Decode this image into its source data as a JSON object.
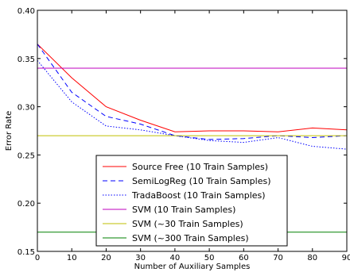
{
  "chart_data": {
    "type": "line",
    "title": "",
    "xlabel": "Number of Auxiliary Samples",
    "ylabel": "Error Rate",
    "xlim": [
      0,
      90
    ],
    "ylim": [
      0.15,
      0.4
    ],
    "x_ticks": [
      0,
      10,
      20,
      30,
      40,
      50,
      60,
      70,
      80,
      90
    ],
    "y_ticks": [
      "0.15",
      "0.20",
      "0.25",
      "0.30",
      "0.35",
      "0.40"
    ],
    "grid": false,
    "legend_position": "bottom-center",
    "x": [
      0,
      10,
      20,
      30,
      40,
      50,
      60,
      70,
      80,
      90
    ],
    "series": [
      {
        "name": "Source Free (10 Train Samples)",
        "color": "#ff0000",
        "dash": "solid",
        "values": [
          0.365,
          0.33,
          0.3,
          0.286,
          0.274,
          0.275,
          0.275,
          0.274,
          0.278,
          0.276
        ]
      },
      {
        "name": "SemiLogReg (10 Train Samples)",
        "color": "#0000ff",
        "dash": "dashed",
        "values": [
          0.365,
          0.315,
          0.29,
          0.282,
          0.27,
          0.266,
          0.267,
          0.27,
          0.268,
          0.27
        ]
      },
      {
        "name": "TradaBoost (10 Train Samples)",
        "color": "#0000ff",
        "dash": "dotted",
        "values": [
          0.348,
          0.305,
          0.28,
          0.276,
          0.27,
          0.265,
          0.263,
          0.268,
          0.259,
          0.256
        ]
      },
      {
        "name": "SVM (10 Train Samples)",
        "color": "#bf00bf",
        "dash": "solid",
        "values": [
          0.34,
          0.34,
          0.34,
          0.34,
          0.34,
          0.34,
          0.34,
          0.34,
          0.34,
          0.34
        ]
      },
      {
        "name": "SVM (~30 Train Samples)",
        "color": "#bfbf00",
        "dash": "solid",
        "values": [
          0.27,
          0.27,
          0.27,
          0.27,
          0.27,
          0.27,
          0.27,
          0.27,
          0.27,
          0.27
        ]
      },
      {
        "name": "SVM (~300 Train Samples)",
        "color": "#008000",
        "dash": "solid",
        "values": [
          0.17,
          0.17,
          0.17,
          0.17,
          0.17,
          0.17,
          0.17,
          0.17,
          0.17,
          0.17
        ]
      }
    ]
  }
}
